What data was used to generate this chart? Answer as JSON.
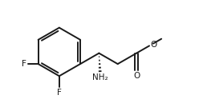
{
  "bg_color": "#ffffff",
  "line_color": "#1a1a1a",
  "line_width": 1.4,
  "font_size": 7.5,
  "label_F1": "F",
  "label_F2": "F",
  "label_NH2": "NH₂",
  "label_O_down": "O",
  "label_O_right": "O",
  "figsize": [
    2.58,
    1.34
  ],
  "dpi": 100,
  "xlim": [
    0.0,
    10.0
  ],
  "ylim": [
    0.8,
    5.8
  ]
}
